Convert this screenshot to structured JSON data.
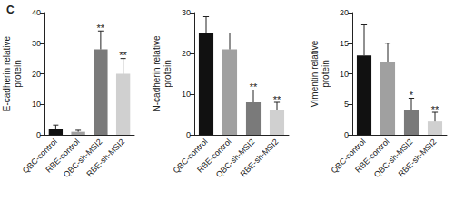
{
  "panel_label": "C",
  "chart_data": [
    {
      "type": "bar",
      "ylabel": "E-cadherin relative\nprotein",
      "categories": [
        "QBC-control",
        "RBE-control",
        "QBC-sh-MSI2",
        "RBE-sh-MSI2"
      ],
      "values": [
        2,
        1,
        28,
        20
      ],
      "errors": [
        1.2,
        0.5,
        6,
        5
      ],
      "significance": [
        null,
        null,
        "**",
        "**"
      ],
      "colors": [
        "#111111",
        "#a0a0a0",
        "#7a7a7a",
        "#d0d0d0"
      ],
      "ylim": [
        0,
        40
      ],
      "yticks": [
        0,
        10,
        20,
        30,
        40
      ],
      "grid": false
    },
    {
      "type": "bar",
      "ylabel": "N-cadherin relative\nprotein",
      "categories": [
        "QBC-control",
        "RBE-control",
        "QBC-sh-MSI2",
        "RBE-sh-MSI2"
      ],
      "values": [
        25,
        21,
        8,
        6
      ],
      "errors": [
        4,
        4,
        3,
        2
      ],
      "significance": [
        null,
        null,
        "**",
        "**"
      ],
      "colors": [
        "#111111",
        "#a0a0a0",
        "#7a7a7a",
        "#d0d0d0"
      ],
      "ylim": [
        0,
        30
      ],
      "yticks": [
        0,
        10,
        20,
        30
      ],
      "grid": false
    },
    {
      "type": "bar",
      "ylabel": "Vimentin relative\nprotein",
      "categories": [
        "QBC-control",
        "RBE-control",
        "QBC-sh-MSI2",
        "RBE-sh-MSI2"
      ],
      "values": [
        13,
        12,
        4,
        2.2
      ],
      "errors": [
        5,
        3,
        2,
        1.5
      ],
      "significance": [
        null,
        null,
        "*",
        "**"
      ],
      "colors": [
        "#111111",
        "#a0a0a0",
        "#7a7a7a",
        "#d0d0d0"
      ],
      "ylim": [
        0,
        20
      ],
      "yticks": [
        0,
        5,
        10,
        15,
        20
      ],
      "grid": false
    }
  ]
}
